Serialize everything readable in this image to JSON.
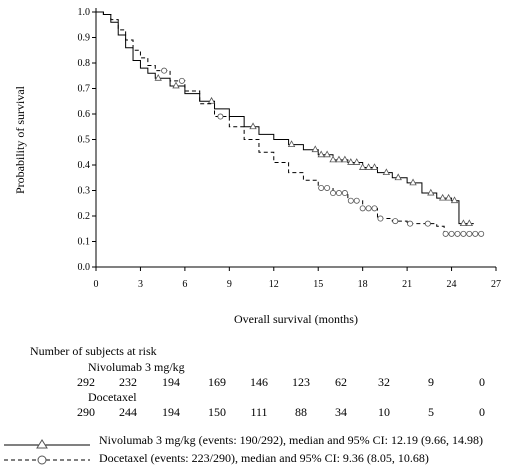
{
  "chart_data": {
    "type": "line",
    "subtype": "kaplan-meier",
    "xlabel": "Overall survival (months)",
    "ylabel": "Probability of survival",
    "xlim": [
      0,
      27
    ],
    "ylim": [
      0,
      1.0
    ],
    "xticks": [
      0,
      3,
      6,
      9,
      12,
      15,
      18,
      21,
      24,
      27
    ],
    "yticks": [
      0.0,
      0.1,
      0.2,
      0.3,
      0.4,
      0.5,
      0.6,
      0.7,
      0.8,
      0.9,
      1.0
    ],
    "grid": false,
    "series": [
      {
        "name": "Nivolumab 3 mg/kg",
        "marker": "triangle",
        "line_style": "solid",
        "points": [
          [
            0,
            1.0
          ],
          [
            0.5,
            0.99
          ],
          [
            1,
            0.96
          ],
          [
            1.5,
            0.91
          ],
          [
            2,
            0.86
          ],
          [
            2.5,
            0.81
          ],
          [
            3,
            0.78
          ],
          [
            3.5,
            0.76
          ],
          [
            4,
            0.74
          ],
          [
            5,
            0.71
          ],
          [
            6,
            0.68
          ],
          [
            7,
            0.65
          ],
          [
            8,
            0.62
          ],
          [
            9,
            0.59
          ],
          [
            10,
            0.55
          ],
          [
            11,
            0.52
          ],
          [
            12,
            0.5
          ],
          [
            13,
            0.48
          ],
          [
            14,
            0.46
          ],
          [
            15,
            0.44
          ],
          [
            16,
            0.42
          ],
          [
            17,
            0.41
          ],
          [
            18,
            0.39
          ],
          [
            19,
            0.37
          ],
          [
            20,
            0.35
          ],
          [
            21,
            0.33
          ],
          [
            22,
            0.29
          ],
          [
            23,
            0.27
          ],
          [
            24,
            0.26
          ],
          [
            24.5,
            0.26
          ],
          [
            24.5,
            0.17
          ],
          [
            25.5,
            0.17
          ]
        ],
        "censor_x": [
          4.2,
          5.4,
          7.8,
          10.6,
          13.2,
          14.8,
          15.2,
          15.6,
          16.0,
          16.4,
          16.8,
          17.2,
          17.6,
          18.0,
          18.4,
          18.8,
          19.6,
          20.4,
          21.4,
          22.6,
          23.4,
          23.8,
          24.2,
          24.8,
          25.2
        ]
      },
      {
        "name": "Docetaxel",
        "marker": "circle",
        "line_style": "dashed",
        "points": [
          [
            0,
            1.0
          ],
          [
            0.5,
            0.99
          ],
          [
            1,
            0.97
          ],
          [
            1.5,
            0.93
          ],
          [
            2,
            0.89
          ],
          [
            2.5,
            0.85
          ],
          [
            3,
            0.82
          ],
          [
            3.5,
            0.79
          ],
          [
            4,
            0.77
          ],
          [
            5,
            0.73
          ],
          [
            6,
            0.69
          ],
          [
            7,
            0.64
          ],
          [
            8,
            0.59
          ],
          [
            9,
            0.55
          ],
          [
            10,
            0.5
          ],
          [
            11,
            0.45
          ],
          [
            12,
            0.41
          ],
          [
            13,
            0.37
          ],
          [
            14,
            0.34
          ],
          [
            15,
            0.31
          ],
          [
            16,
            0.29
          ],
          [
            17,
            0.26
          ],
          [
            18,
            0.23
          ],
          [
            19,
            0.19
          ],
          [
            20,
            0.18
          ],
          [
            21,
            0.17
          ],
          [
            22,
            0.17
          ],
          [
            23,
            0.16
          ],
          [
            23.5,
            0.13
          ],
          [
            26,
            0.13
          ]
        ],
        "censor_x": [
          4.6,
          5.8,
          8.4,
          15.2,
          15.6,
          16.0,
          16.4,
          16.8,
          17.2,
          17.6,
          18.0,
          18.4,
          18.8,
          19.2,
          20.2,
          21.2,
          22.4,
          23.6,
          24.0,
          24.4,
          24.8,
          25.2,
          25.6,
          26.0
        ]
      }
    ]
  },
  "risk_table": {
    "title": "Number of subjects at risk",
    "groups": [
      {
        "label": "Nivolumab 3 mg/kg",
        "values": [
          "292",
          "232",
          "194",
          "169",
          "146",
          "123",
          "62",
          "32",
          "9",
          "0"
        ]
      },
      {
        "label": "Docetaxel",
        "values": [
          "290",
          "244",
          "194",
          "150",
          "111",
          "88",
          "34",
          "10",
          "5",
          "0"
        ]
      }
    ]
  },
  "legend": [
    {
      "marker": "triangle",
      "line_style": "solid",
      "text": "Nivolumab 3 mg/kg (events: 190/292), median and 95% CI: 12.19 (9.66, 14.98)"
    },
    {
      "marker": "circle",
      "line_style": "dashed",
      "text": "Docetaxel (events: 223/290), median and 95% CI: 9.36 (8.05, 10.68)"
    }
  ],
  "colors": {
    "line": "#000000",
    "marker": "#555555"
  }
}
